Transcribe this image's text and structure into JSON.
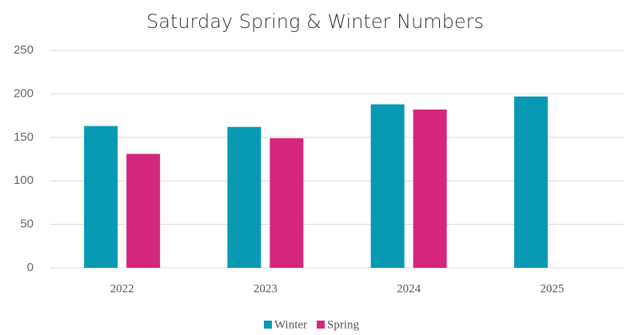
{
  "chart_data": {
    "type": "bar",
    "title": "Saturday Spring & Winter Numbers",
    "categories": [
      "2022",
      "2023",
      "2024",
      "2025"
    ],
    "series": [
      {
        "name": "Winter",
        "color": "#0899b4",
        "values": [
          163,
          162,
          188,
          197
        ]
      },
      {
        "name": "Spring",
        "color": "#d4267c",
        "values": [
          131,
          149,
          182,
          null
        ]
      }
    ],
    "ylim": [
      0,
      250
    ],
    "yticks": [
      0,
      50,
      100,
      150,
      200,
      250
    ],
    "grid": true,
    "legend": "bottom"
  }
}
